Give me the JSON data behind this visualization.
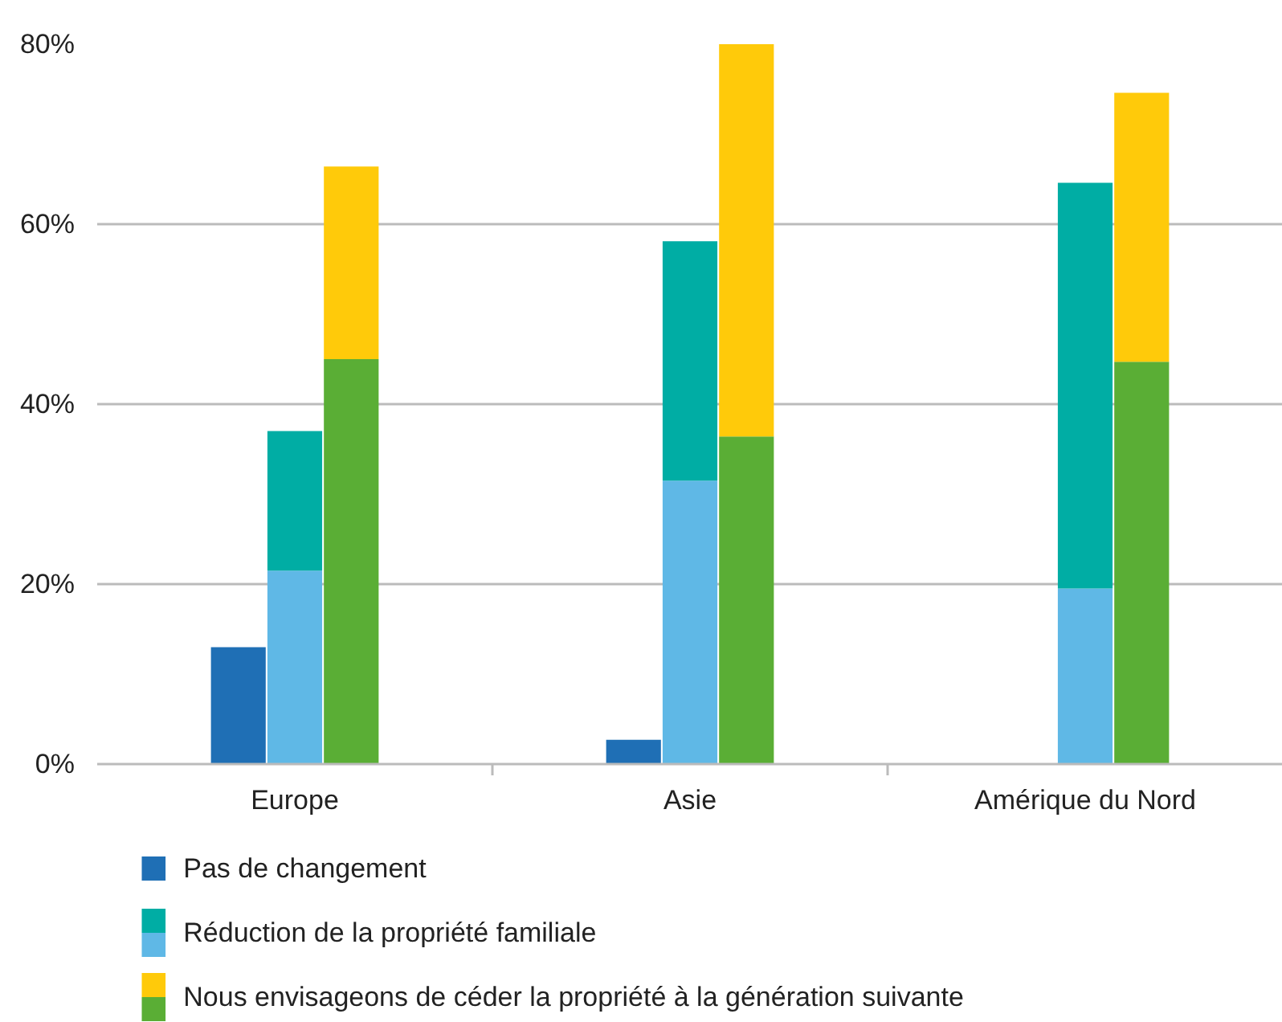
{
  "chart_data": {
    "type": "bar",
    "stacked": true,
    "categories": [
      null,
      null,
      null,
      "Europe",
      null,
      null,
      null,
      null,
      null,
      null,
      "Asie",
      null,
      null,
      null,
      null,
      null,
      null,
      "Amérique du Nord",
      null,
      null,
      null
    ],
    "series": [
      {
        "name": "Pas de changement",
        "color": "#1f6fb5",
        "values": [
          null,
          null,
          13,
          null,
          null,
          null,
          null,
          null,
          null,
          2.7,
          null,
          null,
          null,
          null,
          null,
          null,
          null,
          null,
          null,
          null,
          null
        ]
      },
      {
        "name": "Réduction de la propriété familiale",
        "color": "#5fb8e6",
        "values": [
          null,
          null,
          null,
          21.5,
          null,
          null,
          null,
          null,
          null,
          null,
          31.5,
          null,
          null,
          null,
          null,
          null,
          null,
          19.5,
          null,
          null,
          null
        ]
      },
      {
        "color": "#00ada4",
        "values": [
          null,
          null,
          null,
          15.5,
          null,
          null,
          null,
          null,
          null,
          null,
          26.6,
          null,
          null,
          null,
          null,
          null,
          null,
          45.1,
          null,
          null,
          null
        ]
      },
      {
        "name": "Nous envisageons de céder la propriété à la génération suivante",
        "color": "#5aae35",
        "values": [
          null,
          null,
          null,
          null,
          45,
          null,
          null,
          null,
          null,
          null,
          null,
          36.4,
          null,
          null,
          null,
          null,
          null,
          null,
          44.7,
          null,
          null
        ]
      },
      {
        "color": "#ffca0a",
        "values": [
          null,
          null,
          null,
          null,
          21.4,
          null,
          null,
          null,
          null,
          null,
          null,
          43.6,
          null,
          null,
          null,
          null,
          null,
          null,
          29.9,
          null,
          null
        ]
      }
    ],
    "ylim": [
      0,
      80
    ],
    "yticks": [
      {
        "value": 0,
        "label": "0%"
      },
      {
        "value": 20,
        "label": "20%"
      },
      {
        "value": 40,
        "label": "40%"
      },
      {
        "value": 60,
        "label": "60%"
      },
      {
        "value": 80,
        "label": "80%"
      }
    ],
    "grid": "y",
    "legend": "bottom"
  }
}
